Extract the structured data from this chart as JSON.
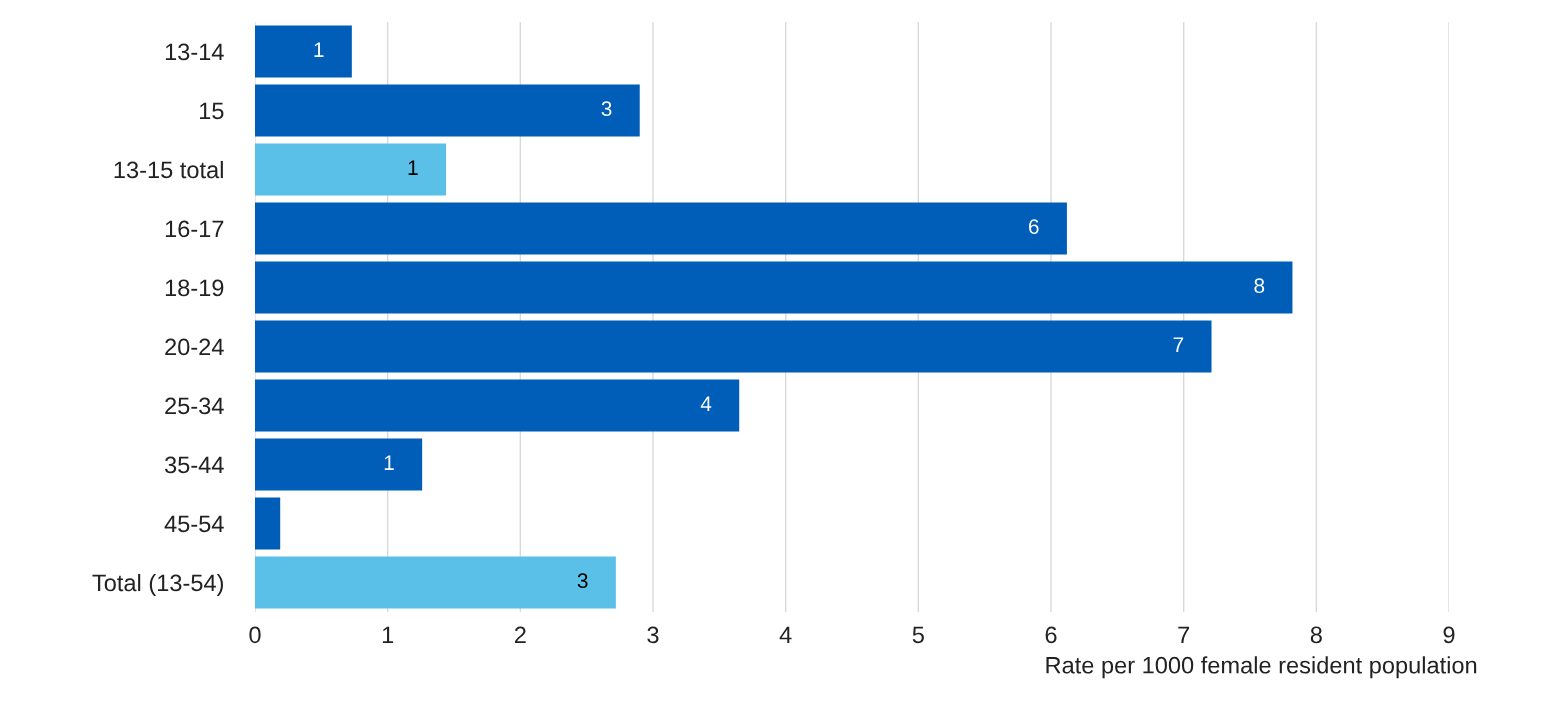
{
  "chart_data": {
    "type": "bar",
    "orientation": "horizontal",
    "categories": [
      "13-14",
      "15",
      "13-15 total",
      "16-17",
      "18-19",
      "20-24",
      "25-34",
      "35-44",
      "45-54",
      "Total (13-54)"
    ],
    "values": [
      0.73,
      2.9,
      1.44,
      6.12,
      7.82,
      7.21,
      3.65,
      1.26,
      0.19,
      2.72
    ],
    "value_labels": [
      "1",
      "3",
      "1",
      "6",
      "8",
      "7",
      "4",
      "1",
      null,
      "3"
    ],
    "colors": [
      "#005eb8",
      "#005eb8",
      "#5bc0e8",
      "#005eb8",
      "#005eb8",
      "#005eb8",
      "#005eb8",
      "#005eb8",
      "#005eb8",
      "#5bc0e8"
    ],
    "xlabel": "Rate per 1000 female resident population",
    "xlim": [
      0,
      9
    ],
    "xticks": [
      0,
      1,
      2,
      3,
      4,
      5,
      6,
      7,
      8,
      9
    ],
    "grid": "x"
  }
}
